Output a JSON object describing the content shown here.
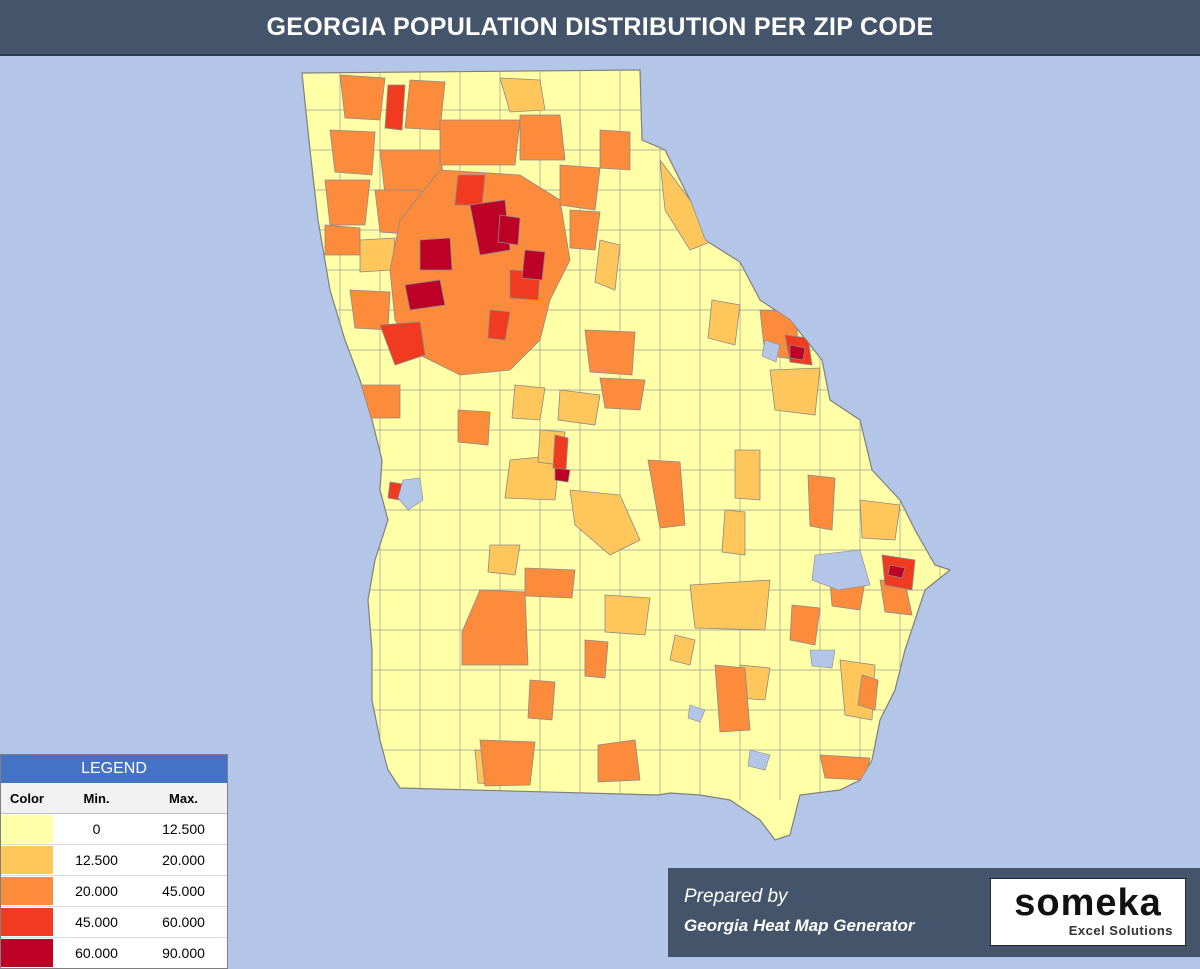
{
  "title": "GEORGIA POPULATION DISTRIBUTION PER ZIP CODE",
  "colors": {
    "background": "#b4c6e7",
    "header": "#44546a",
    "legend_header": "#4472c4",
    "zip_border": "#7f7f7f"
  },
  "legend": {
    "title": "LEGEND",
    "columns": [
      "Color",
      "Min.",
      "Max."
    ],
    "bins": [
      {
        "color": "#ffffa8",
        "min": "0",
        "max": "12.500"
      },
      {
        "color": "#fec65b",
        "min": "12.500",
        "max": "20.000"
      },
      {
        "color": "#fd8b3c",
        "min": "20.000",
        "max": "45.000"
      },
      {
        "color": "#f03b20",
        "min": "45.000",
        "max": "60.000"
      },
      {
        "color": "#bd0026",
        "min": "60.000",
        "max": "90.000"
      }
    ]
  },
  "credit": {
    "line1": "Prepared by",
    "line2": "Georgia Heat Map Generator"
  },
  "logo": {
    "brand": "someka",
    "sub": "Excel Solutions"
  }
}
